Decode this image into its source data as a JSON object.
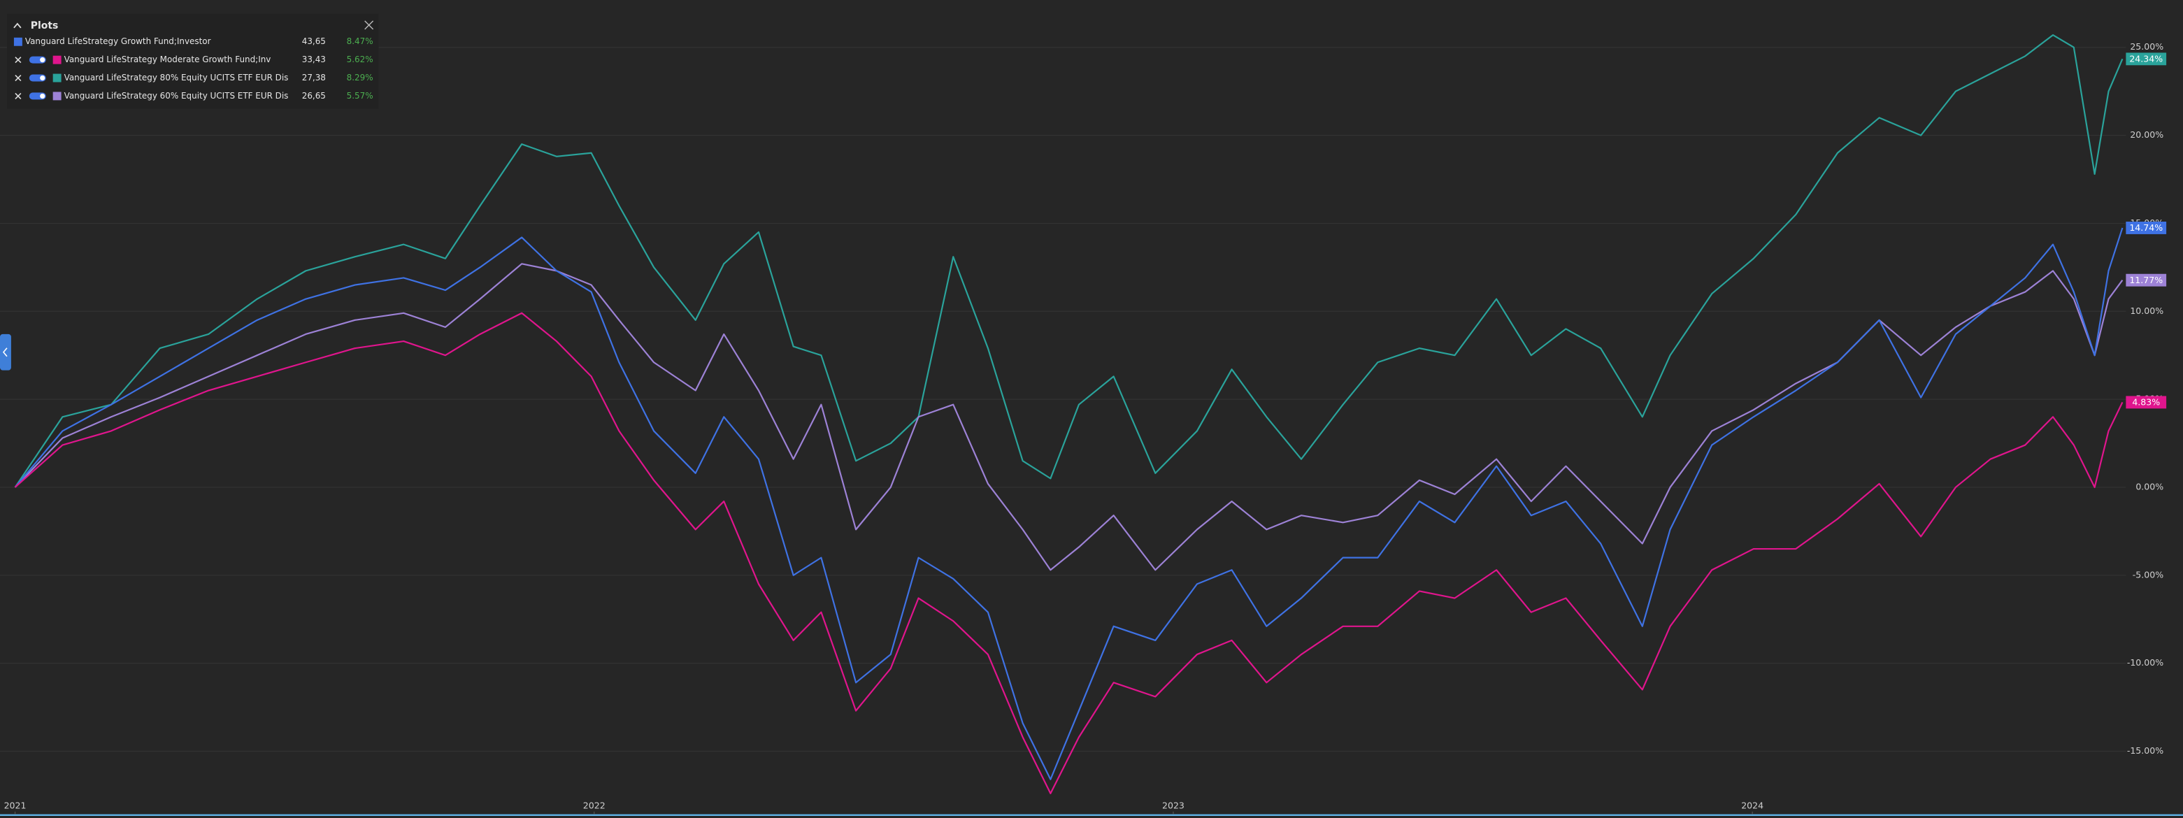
{
  "chart_data": {
    "type": "line",
    "panel_title": "Plots",
    "x": [
      2021.0,
      2021.082,
      2021.166,
      2021.25,
      2021.334,
      2021.418,
      2021.502,
      2021.587,
      2021.671,
      2021.743,
      2021.803,
      2021.875,
      2021.935,
      2021.995,
      2022.043,
      2022.103,
      2022.175,
      2022.224,
      2022.284,
      2022.344,
      2022.392,
      2022.452,
      2022.512,
      2022.56,
      2022.62,
      2022.68,
      2022.74,
      2022.788,
      2022.837,
      2022.897,
      2022.969,
      2023.041,
      2023.101,
      2023.161,
      2023.221,
      2023.293,
      2023.353,
      2023.425,
      2023.486,
      2023.558,
      2023.618,
      2023.678,
      2023.738,
      2023.81,
      2023.858,
      2023.93,
      2024.002,
      2024.075,
      2024.147,
      2024.219,
      2024.291,
      2024.351,
      2024.411,
      2024.471,
      2024.519,
      2024.555,
      2024.591,
      2024.615,
      2024.639
    ],
    "xlim": [
      2020.974,
      2024.645
    ],
    "xticks": [
      2021,
      2022,
      2023,
      2024
    ],
    "ylim": [
      -18.43,
      27.69
    ],
    "yticks": [
      {
        "value": -15,
        "label": "-15.00%"
      },
      {
        "value": -10,
        "label": "-10.00%"
      },
      {
        "value": -5,
        "label": "-5.00%"
      },
      {
        "value": 0,
        "label": "0.00%"
      },
      {
        "value": 5,
        "label": "5.00%"
      },
      {
        "value": 10,
        "label": "10.00%"
      },
      {
        "value": 15,
        "label": "15.00%"
      },
      {
        "value": 20,
        "label": "20.00%"
      },
      {
        "value": 25,
        "label": "25.00%"
      }
    ],
    "grid": true,
    "series": [
      {
        "name": "Vanguard LifeStrategy Growth Fund;Investor",
        "color": "#3f72e4",
        "price_label": "43,65",
        "change_label": "8.47%",
        "end_label": "14.74%",
        "values": [
          0,
          3.2,
          4.7,
          6.3,
          7.9,
          9.5,
          10.7,
          11.5,
          11.9,
          11.2,
          12.5,
          14.2,
          12.3,
          11.1,
          7.1,
          3.2,
          0.8,
          4.0,
          1.6,
          -5.0,
          -4.0,
          -11.1,
          -9.5,
          -4.0,
          -5.2,
          -7.1,
          -13.4,
          -16.6,
          -12.7,
          -7.9,
          -8.7,
          -5.5,
          -4.7,
          -7.9,
          -6.3,
          -4.0,
          -4.0,
          -0.8,
          -2.0,
          1.2,
          -1.6,
          -0.8,
          -3.2,
          -7.9,
          -2.4,
          2.4,
          4.0,
          5.5,
          7.1,
          9.5,
          5.1,
          8.7,
          10.3,
          11.9,
          13.8,
          11.1,
          7.5,
          12.3,
          14.74
        ]
      },
      {
        "name": "Vanguard LifeStrategy Moderate Growth Fund;Inv",
        "color": "#e0158d",
        "price_label": "33,43",
        "change_label": "5.62%",
        "end_label": "4.83%",
        "values": [
          0,
          2.4,
          3.2,
          4.4,
          5.5,
          6.3,
          7.1,
          7.9,
          8.3,
          7.5,
          8.7,
          9.9,
          8.3,
          6.3,
          3.2,
          0.4,
          -2.4,
          -0.8,
          -5.5,
          -8.7,
          -7.1,
          -12.7,
          -10.3,
          -6.3,
          -7.6,
          -9.5,
          -14.2,
          -17.4,
          -14.2,
          -11.1,
          -11.9,
          -9.5,
          -8.7,
          -11.1,
          -9.5,
          -7.9,
          -7.9,
          -5.9,
          -6.3,
          -4.7,
          -7.1,
          -6.3,
          -8.7,
          -11.5,
          -7.9,
          -4.7,
          -3.5,
          -3.5,
          -1.8,
          0.2,
          -2.8,
          0,
          1.6,
          2.4,
          4.0,
          2.4,
          0,
          3.2,
          4.83
        ]
      },
      {
        "name": "Vanguard LifeStrategy 80% Equity UCITS ETF EUR Dis",
        "color": "#2aa39b",
        "price_label": "27,38",
        "change_label": "8.29%",
        "end_label": "24.34%",
        "values": [
          0,
          4.0,
          4.7,
          7.9,
          8.7,
          10.7,
          12.3,
          13.1,
          13.8,
          13.0,
          16.0,
          19.5,
          18.8,
          19.0,
          16.0,
          12.5,
          9.5,
          12.7,
          14.5,
          8.0,
          7.5,
          1.5,
          2.5,
          4.0,
          13.1,
          7.9,
          1.5,
          0.5,
          4.7,
          6.3,
          0.8,
          3.2,
          6.7,
          4.0,
          1.6,
          4.7,
          7.1,
          7.9,
          7.5,
          10.7,
          7.5,
          9.0,
          7.9,
          4.0,
          7.5,
          11.0,
          13.0,
          15.5,
          19.0,
          21.0,
          20.0,
          22.5,
          23.5,
          24.5,
          25.7,
          25.0,
          17.8,
          22.5,
          24.34
        ]
      },
      {
        "name": "Vanguard LifeStrategy 60% Equity UCITS ETF EUR Dis",
        "color": "#9d82d6",
        "price_label": "26,65",
        "change_label": "5.57%",
        "end_label": "11.77%",
        "values": [
          0,
          2.8,
          4.0,
          5.1,
          6.3,
          7.5,
          8.7,
          9.5,
          9.9,
          9.1,
          10.7,
          12.7,
          12.3,
          11.5,
          9.5,
          7.1,
          5.5,
          8.7,
          5.5,
          1.6,
          4.7,
          -2.4,
          0,
          4.0,
          4.7,
          0.2,
          -2.4,
          -4.7,
          -3.4,
          -1.6,
          -4.7,
          -2.4,
          -0.8,
          -2.4,
          -1.6,
          -2.0,
          -1.6,
          0.4,
          -0.4,
          1.6,
          -0.8,
          1.2,
          -0.8,
          -3.2,
          0,
          3.2,
          4.4,
          5.9,
          7.1,
          9.5,
          7.5,
          9.1,
          10.3,
          11.1,
          12.3,
          10.7,
          7.5,
          10.7,
          11.77
        ]
      }
    ]
  }
}
